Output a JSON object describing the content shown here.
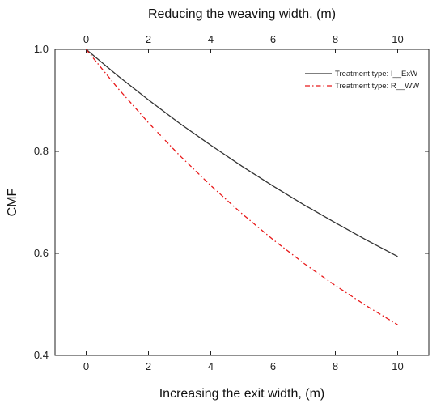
{
  "chart_data": {
    "type": "line",
    "title": "",
    "xlabel": "Increasing the exit width, (m)",
    "x2label": "Reducing the weaving width, (m)",
    "ylabel": "CMF",
    "xlim": [
      -1,
      11
    ],
    "ylim": [
      0.4,
      1.0
    ],
    "xticks": [
      0,
      2,
      4,
      6,
      8,
      10
    ],
    "xtick_labels": [
      "0",
      "2",
      "4",
      "6",
      "8",
      "10"
    ],
    "x2ticks": [
      0,
      2,
      4,
      6,
      8,
      10
    ],
    "x2tick_labels": [
      "0",
      "2",
      "4",
      "6",
      "8",
      "10"
    ],
    "yticks": [
      0.4,
      0.6,
      0.8,
      1.0
    ],
    "ytick_labels": [
      "0.4",
      "0.6",
      "0.8",
      "1.0"
    ],
    "grid": false,
    "legend_position": "top-right",
    "x": [
      0,
      1,
      2,
      3,
      4,
      5,
      6,
      7,
      8,
      9,
      10
    ],
    "series": [
      {
        "name": "Treatment type: I__ExW",
        "color": "#333333",
        "style": "solid",
        "values": [
          1.0,
          0.949,
          0.901,
          0.855,
          0.812,
          0.771,
          0.732,
          0.695,
          0.66,
          0.626,
          0.594
        ]
      },
      {
        "name": "Treatment type: R__WW",
        "color": "#e8191a",
        "style": "dashdot",
        "values": [
          1.0,
          0.925,
          0.856,
          0.792,
          0.733,
          0.678,
          0.627,
          0.58,
          0.537,
          0.497,
          0.46
        ]
      }
    ]
  }
}
